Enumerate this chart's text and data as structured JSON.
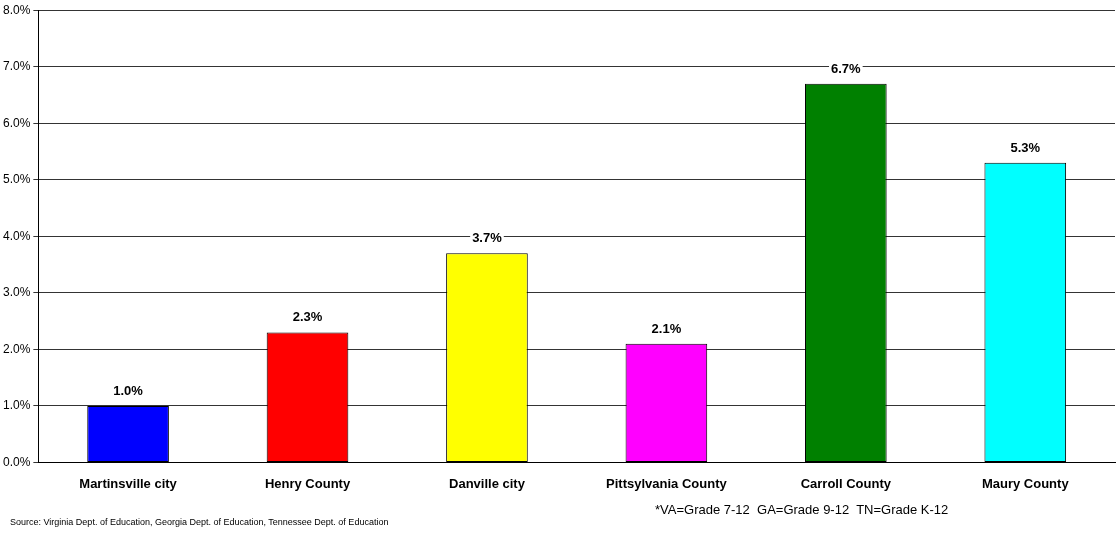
{
  "chart_data": {
    "type": "bar",
    "categories": [
      "Martinsville city",
      "Henry County",
      "Danville city",
      "Pittsylvania County",
      "Carroll County",
      "Maury County"
    ],
    "values": [
      1.0,
      2.3,
      3.7,
      2.1,
      6.7,
      5.3
    ],
    "value_labels": [
      "1.0%",
      "2.3%",
      "3.7%",
      "2.1%",
      "6.7%",
      "5.3%"
    ],
    "colors": [
      "#0000ff",
      "#ff0000",
      "#ffff00",
      "#ff00ff",
      "#008000",
      "#00ffff"
    ],
    "ylim": [
      0,
      8
    ],
    "yticks": [
      {
        "value": 0,
        "label": "0.0%"
      },
      {
        "value": 1,
        "label": "1.0%"
      },
      {
        "value": 2,
        "label": "2.0%"
      },
      {
        "value": 3,
        "label": "3.0%"
      },
      {
        "value": 4,
        "label": "4.0%"
      },
      {
        "value": 5,
        "label": "5.0%"
      },
      {
        "value": 6,
        "label": "6.0%"
      },
      {
        "value": 7,
        "label": "7.0%"
      },
      {
        "value": 8,
        "label": "8.0%"
      }
    ],
    "grid": "y",
    "legend": false,
    "annotations": [
      "Source: Virginia Dept. of Education, Georgia Dept. of Education, Tennessee Dept. of Education",
      "*VA=Grade 7-12  GA=Grade 9-12  TN=Grade K-12"
    ]
  }
}
